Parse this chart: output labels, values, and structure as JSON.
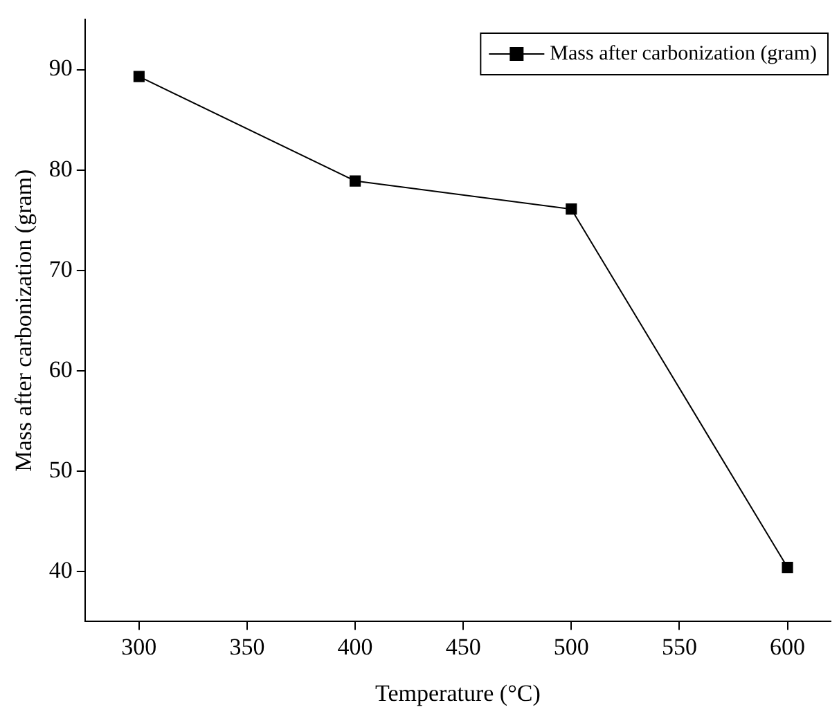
{
  "chart_data": {
    "type": "line",
    "xlabel": "Temperature (°C)",
    "ylabel": "Mass after carbonization (gram)",
    "x": [
      300,
      400,
      500,
      600
    ],
    "series": [
      {
        "name": "Mass after carbonization (gram)",
        "color": "#000000",
        "values": [
          89.3,
          78.9,
          76.1,
          40.4
        ]
      }
    ],
    "xlim": [
      275,
      620
    ],
    "xticks": [
      300,
      350,
      400,
      450,
      500,
      550,
      600
    ],
    "ylim": [
      35,
      95
    ],
    "yticks": [
      40,
      50,
      60,
      70,
      80,
      90
    ],
    "grid": false,
    "legend": "top right",
    "marker": "square",
    "line_style": "solid"
  }
}
